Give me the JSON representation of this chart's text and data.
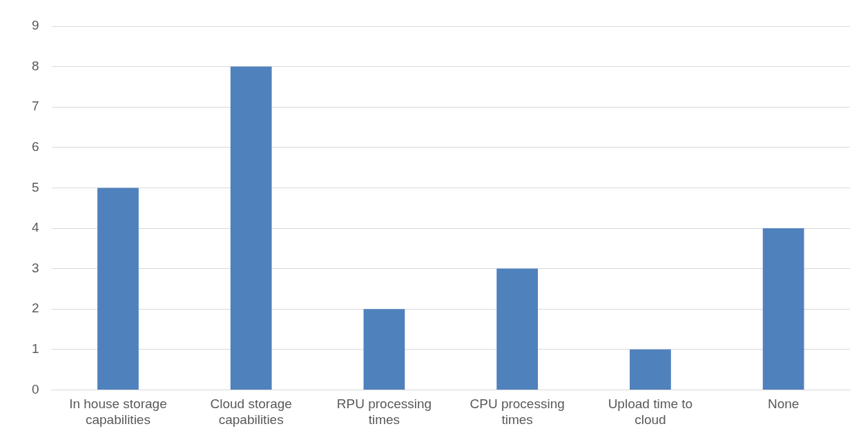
{
  "chart_data": {
    "type": "bar",
    "categories": [
      "In house storage capabilities",
      "Cloud storage capabilities",
      "RPU processing times",
      "CPU processing times",
      "Upload time to cloud",
      "None"
    ],
    "values": [
      5,
      8,
      2,
      3,
      1,
      4
    ],
    "color": "#4f81bd",
    "ylim": [
      0,
      9
    ],
    "yticks": [
      0,
      1,
      2,
      3,
      4,
      5,
      6,
      7,
      8,
      9
    ],
    "grid": "y",
    "legend": false
  }
}
